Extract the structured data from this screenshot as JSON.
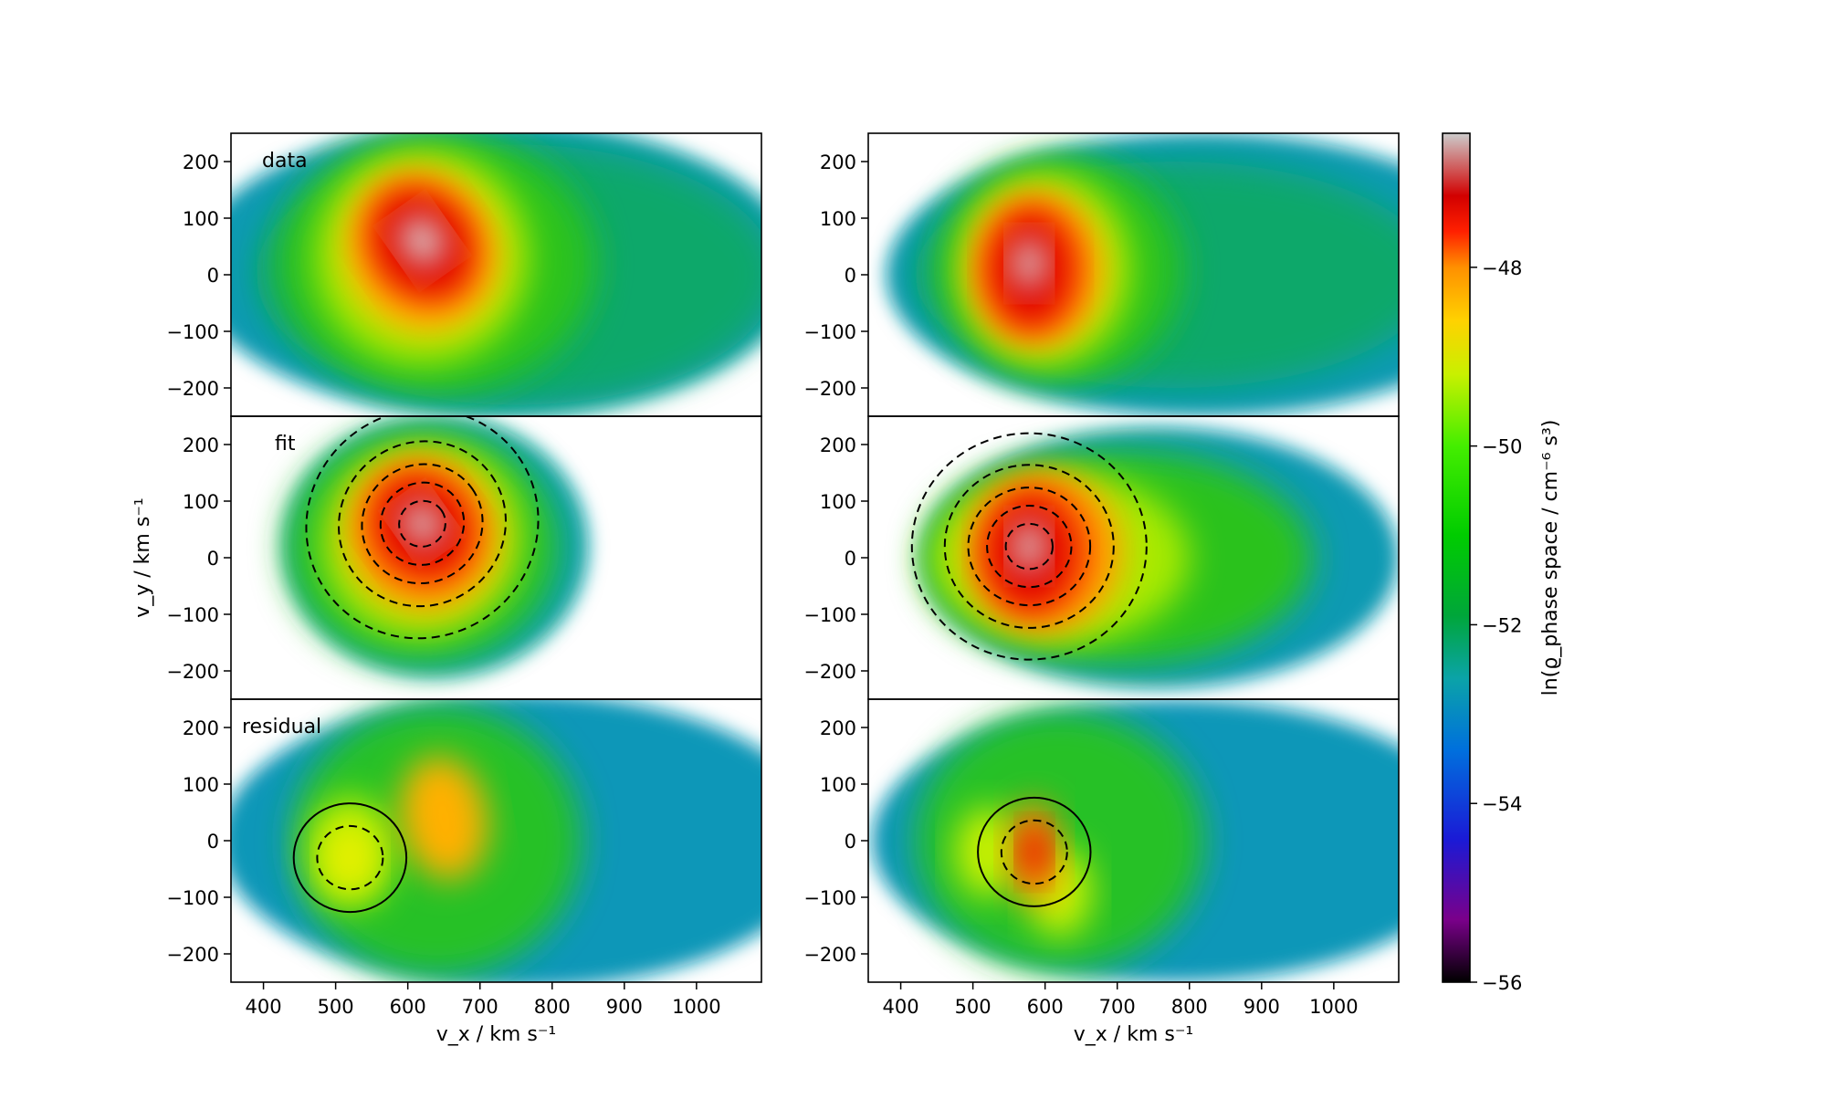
{
  "chart_data": {
    "type": "heatmap",
    "panels": [
      {
        "row": 0,
        "col": 0,
        "label": "data",
        "contours": false
      },
      {
        "row": 1,
        "col": 0,
        "label": "fit",
        "contours": true
      },
      {
        "row": 2,
        "col": 0,
        "label": "residual",
        "contours": true
      },
      {
        "row": 0,
        "col": 1,
        "label": "",
        "contours": false
      },
      {
        "row": 1,
        "col": 1,
        "label": "",
        "contours": true
      },
      {
        "row": 2,
        "col": 1,
        "label": "",
        "contours": true
      }
    ],
    "xlabel": "v_x / km s⁻¹",
    "ylabel": "v_y / km s⁻¹",
    "xlim": [
      355,
      1090
    ],
    "ylim": [
      -250,
      250
    ],
    "xticks": [
      400,
      500,
      600,
      700,
      800,
      900,
      1000
    ],
    "yticks": [
      200,
      100,
      0,
      -100,
      -200
    ],
    "colorbar": {
      "label": "ln(ϱ_phase space / cm⁻⁶ s³)",
      "range": [
        -56,
        -46.5
      ],
      "ticks": [
        -48,
        -50,
        -52,
        -54,
        -56
      ],
      "colormap": "nipy_spectral"
    },
    "peaks": {
      "left": {
        "vx": 620,
        "vy": 55,
        "value": -46.8
      },
      "right": {
        "vx": 580,
        "vy": 10,
        "value": -46.8
      }
    }
  }
}
